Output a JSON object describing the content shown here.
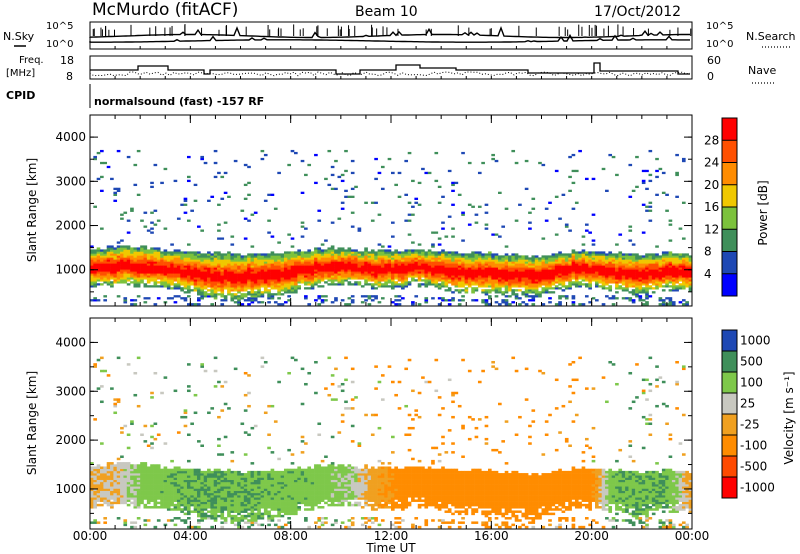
{
  "header": {
    "station": "McMurdo (fitACF)",
    "beam": "Beam 10",
    "date": "17/Oct/2012"
  },
  "panel_labels": {
    "nsky": "N.Sky",
    "nsearch": "N.Search",
    "freq_line1": "Freq.",
    "freq_line2": "[MHz]",
    "nave": "Nave",
    "cpid": "CPID",
    "cpid_value": "normalsound (fast) -157 RF"
  },
  "colors": {
    "power_scale": [
      "#0000ff",
      "#1e48b4",
      "#3f8f5a",
      "#7cc23c",
      "#f0c800",
      "#ff8c00",
      "#ff5000",
      "#ff0000"
    ],
    "velocity_scale": [
      "#ff0000",
      "#ff4a00",
      "#ff8c00",
      "#f0a020",
      "#c8c8c0",
      "#7ec84a",
      "#3f8f5a",
      "#1e48b4"
    ]
  },
  "chart_data": [
    {
      "type": "line",
      "panel": "noise",
      "series": [
        {
          "name": "N.Sky",
          "values": []
        },
        {
          "name": "N.Search",
          "values": []
        }
      ],
      "ytick_labels_left": [
        "10^5",
        "10^0"
      ],
      "ytick_labels_right": [
        "10^5",
        "10^0"
      ],
      "ylim": [
        1,
        100000
      ],
      "log_scale": true
    },
    {
      "type": "line",
      "panel": "frequency_nave",
      "series": [
        {
          "name": "Freq.",
          "values": []
        },
        {
          "name": "Nave",
          "values": []
        }
      ],
      "ytick_labels_left": [
        "18",
        "8"
      ],
      "ytick_labels_right": [
        "60",
        "0"
      ],
      "ylim_left": [
        8,
        18
      ],
      "ylim_right": [
        0,
        60
      ]
    },
    {
      "type": "heatmap",
      "panel": "power",
      "ylabel": "Slant Range [km]",
      "xlabel": "Time UT",
      "ylim": [
        180,
        4500
      ],
      "yticks": [
        "1000",
        "2000",
        "3000",
        "4000"
      ],
      "xticks": [
        "00:00",
        "04:00",
        "08:00",
        "12:00",
        "16:00",
        "20:00",
        "00:00"
      ],
      "colorbar_label": "Power [dB]",
      "colorbar_ticks": [
        "4",
        "8",
        "12",
        "16",
        "20",
        "24",
        "28"
      ],
      "colorbar_range": [
        0,
        32
      ],
      "main_band_center_km": [
        1000,
        1050,
        1080,
        1050,
        1000,
        980,
        900,
        850,
        820,
        830,
        850,
        880,
        950,
        1000,
        1050,
        1050,
        1000,
        980,
        1000,
        1050,
        1000,
        950,
        900,
        900,
        880,
        850,
        850,
        900,
        980,
        1000,
        950,
        900,
        880,
        900,
        950,
        900
      ],
      "main_band_halfwidth_km": [
        420,
        440,
        460,
        440,
        420,
        440,
        480,
        520,
        540,
        520,
        500,
        480,
        460,
        440,
        420,
        420,
        430,
        440,
        420,
        400,
        420,
        440,
        460,
        470,
        460,
        450,
        440,
        430,
        420,
        420,
        430,
        440,
        450,
        440,
        430,
        420
      ]
    },
    {
      "type": "heatmap",
      "panel": "velocity",
      "ylabel": "Slant Range [km]",
      "xlabel": "Time UT",
      "ylim": [
        180,
        4500
      ],
      "yticks": [
        "1000",
        "2000",
        "3000",
        "4000"
      ],
      "xticks": [
        "00:00",
        "04:00",
        "08:00",
        "12:00",
        "16:00",
        "20:00",
        "00:00"
      ],
      "colorbar_label": "Velocity [m s⁻¹]",
      "colorbar_ticks": [
        "1000",
        "500",
        "100",
        "25",
        "-25",
        "-100",
        "-500",
        "-1000"
      ],
      "velocity_by_hour_m_s": [
        -30,
        -20,
        60,
        80,
        100,
        90,
        90,
        80,
        80,
        60,
        20,
        -80,
        -150,
        -200,
        -220,
        -250,
        -230,
        -220,
        -200,
        -180,
        80,
        90,
        100,
        -50
      ]
    }
  ],
  "axis": {
    "xlabel": "Time UT",
    "ylabel": "Slant Range [km]"
  }
}
